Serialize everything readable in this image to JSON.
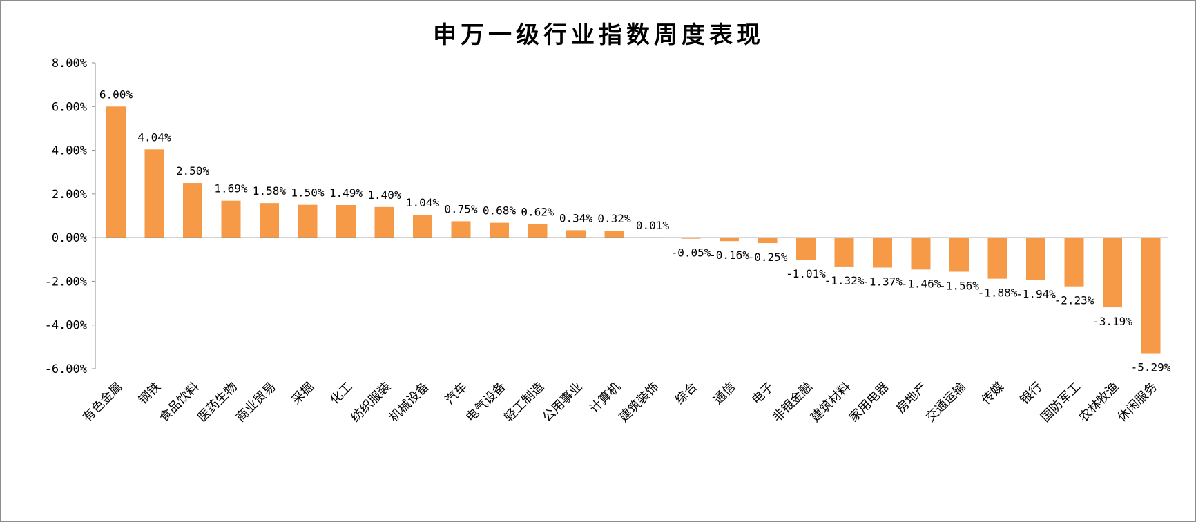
{
  "chart_data": {
    "type": "bar",
    "title": "申万一级行业指数周度表现",
    "xlabel": "",
    "ylabel": "",
    "ylim": [
      -6,
      8
    ],
    "yticks": [
      "8.00%",
      "6.00%",
      "4.00%",
      "2.00%",
      "0.00%",
      "-2.00%",
      "-4.00%",
      "-6.00%"
    ],
    "ytick_values": [
      8,
      6,
      4,
      2,
      0,
      -2,
      -4,
      -6
    ],
    "grid": false,
    "legend": "none",
    "bar_color": "#F79A47",
    "categories": [
      "有色金属",
      "钢铁",
      "食品饮料",
      "医药生物",
      "商业贸易",
      "采掘",
      "化工",
      "纺织服装",
      "机械设备",
      "汽车",
      "电气设备",
      "轻工制造",
      "公用事业",
      "计算机",
      "建筑装饰",
      "综合",
      "通信",
      "电子",
      "非银金融",
      "建筑材料",
      "家用电器",
      "房地产",
      "交通运输",
      "传媒",
      "银行",
      "国防军工",
      "农林牧渔",
      "休闲服务"
    ],
    "values": [
      6.0,
      4.04,
      2.5,
      1.69,
      1.58,
      1.5,
      1.49,
      1.4,
      1.04,
      0.75,
      0.68,
      0.62,
      0.34,
      0.32,
      0.01,
      -0.05,
      -0.16,
      -0.25,
      -1.01,
      -1.32,
      -1.37,
      -1.46,
      -1.56,
      -1.88,
      -1.94,
      -2.23,
      -3.19,
      -5.29
    ],
    "data_labels": [
      "6.00%",
      "4.04%",
      "2.50%",
      "1.69%",
      "1.58%",
      "1.50%",
      "1.49%",
      "1.40%",
      "1.04%",
      "0.75%",
      "0.68%",
      "0.62%",
      "0.34%",
      "0.32%",
      "0.01%",
      "-0.05%",
      "-0.16%",
      "-0.25%",
      "-1.01%",
      "-1.32%",
      "-1.37%",
      "-1.46%",
      "-1.56%",
      "-1.88%",
      "-1.94%",
      "-2.23%",
      "-3.19%",
      "-5.29%"
    ]
  }
}
